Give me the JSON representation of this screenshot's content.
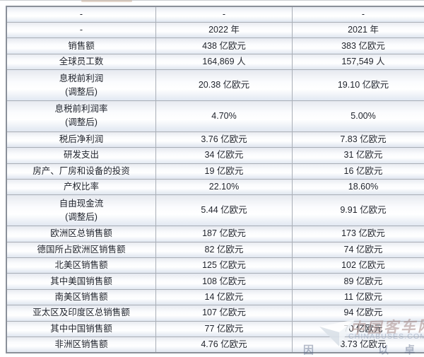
{
  "table": {
    "column_roles": [
      "indicator",
      "year_2022",
      "year_2021"
    ],
    "rows": [
      [
        "-",
        "-",
        "-"
      ],
      [
        "-",
        "2022 年",
        "2021 年"
      ],
      [
        "销售额",
        "438 亿欧元",
        "383 亿欧元"
      ],
      [
        "全球员工数",
        "164,869 人",
        "157,549 人"
      ],
      [
        "息税前利润\n(调整后)",
        "20.38 亿欧元",
        "19.10 亿欧元"
      ],
      [
        "息税前利润率\n(调整后)",
        "4.70%",
        "5.00%"
      ],
      [
        "税后净利润",
        "3.76 亿欧元",
        "7.83 亿欧元"
      ],
      [
        "研发支出",
        "34 亿欧元",
        "31 亿欧元"
      ],
      [
        "房产、厂房和设备的投资",
        "19 亿欧元",
        "16 亿欧元"
      ],
      [
        "产权比率",
        "22.10%",
        "18.60%"
      ],
      [
        "自由现金流\n(调整后)",
        "5.44 亿欧元",
        "9.91 亿欧元"
      ],
      [
        "欧洲区总销售额",
        "187 亿欧元",
        "173 亿欧元"
      ],
      [
        "德国所占欧洲区销售额",
        "82 亿欧元",
        "74 亿欧元"
      ],
      [
        "北美区销售额",
        "125 亿欧元",
        "102 亿欧元"
      ],
      [
        "其中美国销售额",
        "108 亿欧元",
        "89 亿欧元"
      ],
      [
        "南美区销售额",
        "14 亿欧元",
        "11 亿欧元"
      ],
      [
        "亚太区及印度区总销售额",
        "107 亿欧元",
        "94 亿欧元"
      ],
      [
        "其中中国销售额",
        "77 亿欧元",
        "70 亿欧元"
      ],
      [
        "非洲区销售额",
        "4.76 亿欧元",
        "3.73 亿欧元"
      ]
    ]
  },
  "watermark": {
    "brand": "中国客车网",
    "domain": "CHINABUSES.COM",
    "slogan_left": "因",
    "slogan_right": "以 卓 越"
  },
  "colors": {
    "outer_border": "#8a9099",
    "cell_border": "#a9aeb6",
    "row_gradient_top": "#e7eaf0",
    "row_gradient_bottom": "#e0e7f1",
    "text": "#1e222b",
    "watermark_brand": "rgba(166,138,136,0.55)",
    "watermark_domain": "rgba(148,163,188,0.62)"
  }
}
